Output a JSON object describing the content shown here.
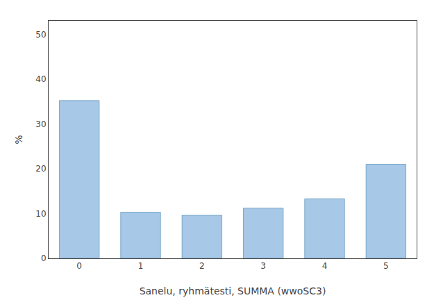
{
  "chart_data": {
    "type": "bar",
    "categories": [
      0,
      1,
      2,
      3,
      4,
      5
    ],
    "values": [
      35.2,
      10.3,
      9.6,
      11.2,
      13.3,
      21.0
    ],
    "color": "#a8c8e8",
    "xlabel": "Sanelu, ryhmätesti, SUMMA (wwoSC3)",
    "ylabel": "%",
    "ylim": [
      0,
      53
    ],
    "yticks": [
      0,
      10,
      20,
      30,
      40,
      50
    ],
    "grid": false
  }
}
